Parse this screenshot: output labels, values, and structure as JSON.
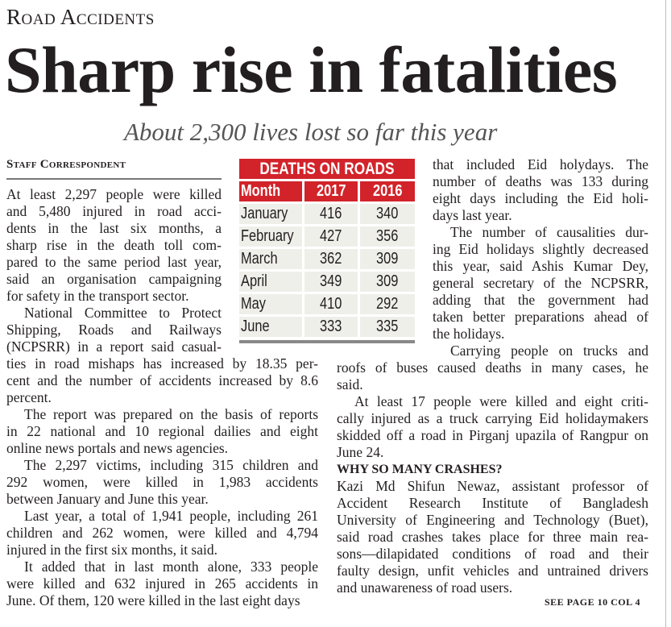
{
  "kicker": "Road Accidents",
  "headline": "Sharp rise in fatalities",
  "subheadline": "About 2,300 lives lost so far this year",
  "byline": "Staff Correspondent",
  "table": {
    "title": "DEATHS ON ROADS",
    "headers": [
      "Month",
      "2017",
      "2016"
    ],
    "rows": [
      [
        "January",
        "416",
        "340"
      ],
      [
        "February",
        "427",
        "356"
      ],
      [
        "March",
        "362",
        "309"
      ],
      [
        "April",
        "349",
        "309"
      ],
      [
        "May",
        "410",
        "292"
      ],
      [
        "June",
        "333",
        "335"
      ]
    ],
    "accent_color": "#d2232a"
  },
  "left_column": [
    [
      "At least 2,297 people were killed",
      "and 5,480 injured in road acci-",
      "dents in the last six months, a",
      "sharp rise in the death toll com-",
      "pared to the same period last year,",
      "said an organisation campaigning",
      "for safety in the transport sector."
    ],
    [
      "National Committee to Protect",
      "Shipping, Roads and Railways",
      "(NCPSRR) in a report said casual-",
      "ties in road mishaps has increased by 18.35 per-",
      "cent and the number of accidents increased by 8.6",
      "percent."
    ],
    [
      "The report was prepared on the basis of reports",
      "in 22 national and 10 regional dailies and eight",
      "online news portals and news agencies."
    ],
    [
      "The 2,297 victims, including 315 children and",
      "292 women, were killed in 1,983 accidents",
      "between January and June this year."
    ],
    [
      "Last year, a total of 1,941 people, including 261",
      "children and 262 women, were killed and 4,794",
      "injured in the first six months, it said."
    ],
    [
      "It added that in last month alone, 333 people",
      "were killed and 632 injured in 265 accidents in",
      "June. Of them, 120 were killed in the last eight days"
    ]
  ],
  "right_column": [
    [
      "that included Eid holydays. The",
      "number of deaths was 133 during",
      "eight days including the Eid holi-",
      "days last year."
    ],
    [
      "The number of causalities dur-",
      "ing Eid holidays slightly decreased",
      "this year, said Ashis Kumar Dey,",
      "general secretary of the NCPSRR,",
      "adding that the government had",
      "taken better preparations ahead of",
      "the holidays."
    ],
    [
      "Carrying people on trucks and",
      "roofs of buses caused deaths in many cases, he",
      "said."
    ],
    [
      "At least 17 people were killed and eight criti-",
      "cally injured as a truck carrying Eid holidaymakers",
      "skidded off a road in Pirganj upazila of Rangpur on",
      "June 24."
    ]
  ],
  "subheading": "WHY SO MANY CRASHES?",
  "right_column_2": [
    [
      "Kazi Md Shifun Newaz, assistant professor of",
      "Accident Research Institute of Bangladesh",
      "University of Engineering and Technology (Buet),",
      "said road crashes takes place for three main rea-",
      "sons—dilapidated conditions of road and their",
      "faulty design, unfit vehicles and untrained drivers",
      "and unawareness of road users."
    ]
  ],
  "continuation": "SEE PAGE 10 COL 4"
}
